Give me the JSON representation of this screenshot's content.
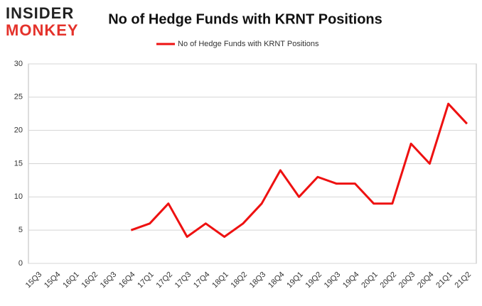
{
  "logo": {
    "line1": "INSIDER",
    "line2": "MONKEY"
  },
  "chart_data": {
    "type": "line",
    "title": "No of Hedge Funds with KRNT Positions",
    "categories": [
      "15Q3",
      "15Q4",
      "16Q1",
      "16Q2",
      "16Q3",
      "16Q4",
      "17Q1",
      "17Q2",
      "17Q3",
      "17Q4",
      "18Q1",
      "18Q2",
      "18Q3",
      "18Q4",
      "19Q1",
      "19Q2",
      "19Q3",
      "19Q4",
      "20Q1",
      "20Q2",
      "20Q3",
      "20Q4",
      "21Q1",
      "21Q2"
    ],
    "series": [
      {
        "name": "No of Hedge Funds with KRNT Positions",
        "color": "#ee1111",
        "values": [
          null,
          null,
          null,
          null,
          null,
          5,
          6,
          9,
          4,
          6,
          4,
          6,
          9,
          14,
          10,
          13,
          12,
          12,
          9,
          9,
          18,
          15,
          24,
          21
        ]
      }
    ],
    "ylim": [
      0,
      30
    ],
    "yticks": [
      0,
      5,
      10,
      15,
      20,
      25,
      30
    ],
    "grid": true,
    "legend": "top"
  }
}
